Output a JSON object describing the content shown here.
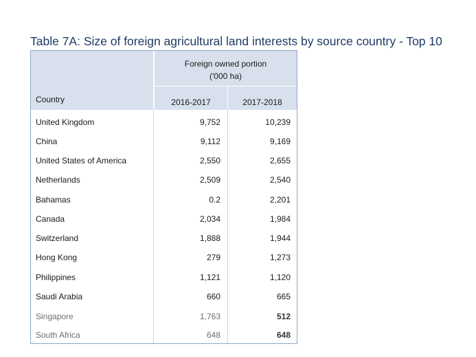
{
  "title": "Table 7A: Size of foreign agricultural land interests by source country - Top 10",
  "table": {
    "group_header_line1": "Foreign owned portion",
    "group_header_line2": "('000 ha)",
    "col_country": "Country",
    "col_year1": "2016-2017",
    "col_year2": "2017-2018",
    "rows": [
      {
        "country": "United Kingdom",
        "y1": "9,752",
        "y2": "10,239"
      },
      {
        "country": "China",
        "y1": "9,112",
        "y2": "9,169"
      },
      {
        "country": "United States of America",
        "y1": "2,550",
        "y2": "2,655"
      },
      {
        "country": "Netherlands",
        "y1": "2,509",
        "y2": "2,540"
      },
      {
        "country": "Bahamas",
        "y1": "0.2",
        "y2": "2,201"
      },
      {
        "country": "Canada",
        "y1": "2,034",
        "y2": "1,984"
      },
      {
        "country": "Switzerland",
        "y1": "1,888",
        "y2": "1,944"
      },
      {
        "country": "Hong Kong",
        "y1": "279",
        "y2": "1,273"
      },
      {
        "country": "Philippines",
        "y1": "1,121",
        "y2": "1,120"
      },
      {
        "country": "Saudi Arabia",
        "y1": "660",
        "y2": "665"
      },
      {
        "country": "Singapore",
        "y1": "1,763",
        "y2": "512"
      },
      {
        "country": "South Africa",
        "y1": "648",
        "y2": "648"
      }
    ]
  },
  "colors": {
    "title": "#1f3a64",
    "header_bg": "#d7e0ec",
    "border": "#8ea6c6"
  }
}
